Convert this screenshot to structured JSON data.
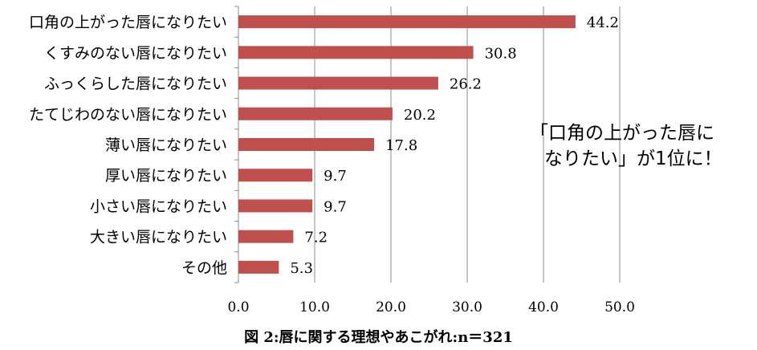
{
  "chart_data": {
    "type": "bar",
    "orientation": "horizontal",
    "categories": [
      "口角の上がった唇になりたい",
      "くすみのない唇になりたい",
      "ふっくらした唇になりたい",
      "たてじわのない唇になりたい",
      "薄い唇になりたい",
      "厚い唇になりたい",
      "小さい唇になりたい",
      "大きい唇になりたい",
      "その他"
    ],
    "values": [
      44.2,
      30.8,
      26.2,
      20.2,
      17.8,
      9.7,
      9.7,
      7.2,
      5.3
    ],
    "value_labels": [
      "44.2",
      "30.8",
      "26.2",
      "20.2",
      "17.8",
      "9.7",
      "9.7",
      "7.2",
      "5.3"
    ],
    "xlim": [
      0,
      50
    ],
    "xticks": [
      "0.0",
      "10.0",
      "20.0",
      "30.0",
      "40.0",
      "50.0"
    ],
    "grid": true,
    "bar_color": "#c0504d",
    "caption": "図 2:唇に関する理想やあこがれ:n＝321",
    "annotation": [
      "「口角の上がった唇に",
      "なりたい」が1位に！"
    ]
  }
}
